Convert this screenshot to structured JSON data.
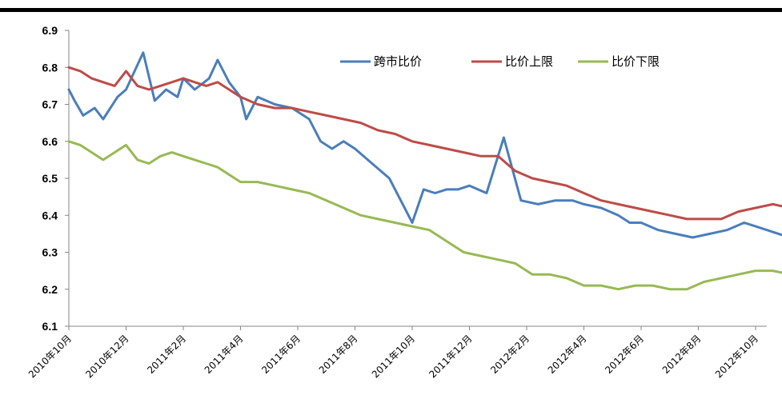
{
  "chart_data": {
    "type": "line",
    "title": "",
    "xlabel": "",
    "ylabel": "",
    "ylim": [
      6.1,
      6.9
    ],
    "yticks": [
      "6.1",
      "6.2",
      "6.3",
      "6.4",
      "6.5",
      "6.6",
      "6.7",
      "6.8",
      "6.9"
    ],
    "xticks": [
      "2010年10月",
      "2010年12月",
      "2011年2月",
      "2011年4月",
      "2011年6月",
      "2011年8月",
      "2011年10月",
      "2011年12月",
      "2012年2月",
      "2012年4月",
      "2012年6月",
      "2012年8月",
      "2012年10月"
    ],
    "grid": false,
    "legend_position": "top-right",
    "colors": [
      "#4a7ebb",
      "#be4b48",
      "#98b954"
    ],
    "series": [
      {
        "name": "跨市比价",
        "x": [
          0,
          0.1,
          0.25,
          0.45,
          0.6,
          0.85,
          1.0,
          1.3,
          1.5,
          1.7,
          1.9,
          2.0,
          2.2,
          2.45,
          2.6,
          2.8,
          3.0,
          3.1,
          3.3,
          3.6,
          3.9,
          4.2,
          4.4,
          4.6,
          4.8,
          5.0,
          5.3,
          5.6,
          5.8,
          6.0,
          6.2,
          6.4,
          6.6,
          6.8,
          7.0,
          7.3,
          7.6,
          7.9,
          8.2,
          8.5,
          8.8,
          9.0,
          9.3,
          9.6,
          9.8,
          10.0,
          10.3,
          10.6,
          10.9,
          11.2,
          11.5,
          11.8,
          12.0,
          12.2,
          12.4,
          12.6
        ],
        "values": [
          6.74,
          6.71,
          6.67,
          6.69,
          6.66,
          6.72,
          6.74,
          6.84,
          6.71,
          6.74,
          6.72,
          6.77,
          6.74,
          6.77,
          6.82,
          6.76,
          6.72,
          6.66,
          6.72,
          6.7,
          6.69,
          6.66,
          6.6,
          6.58,
          6.6,
          6.58,
          6.54,
          6.5,
          6.44,
          6.38,
          6.47,
          6.46,
          6.47,
          6.47,
          6.48,
          6.46,
          6.61,
          6.44,
          6.43,
          6.44,
          6.44,
          6.43,
          6.42,
          6.4,
          6.38,
          6.38,
          6.36,
          6.35,
          6.34,
          6.35,
          6.36,
          6.38,
          6.37,
          6.36,
          6.35,
          6.34
        ]
      },
      {
        "name": "比价上限",
        "x": [
          0,
          0.2,
          0.4,
          0.6,
          0.8,
          1.0,
          1.2,
          1.4,
          1.6,
          1.8,
          2.0,
          2.2,
          2.4,
          2.6,
          2.8,
          3.0,
          3.3,
          3.6,
          3.9,
          4.2,
          4.5,
          4.8,
          5.1,
          5.4,
          5.7,
          6.0,
          6.3,
          6.6,
          6.9,
          7.2,
          7.5,
          7.8,
          8.1,
          8.4,
          8.7,
          9.0,
          9.3,
          9.6,
          9.9,
          10.2,
          10.5,
          10.8,
          11.1,
          11.4,
          11.7,
          12.0,
          12.3,
          12.6
        ],
        "values": [
          6.8,
          6.79,
          6.77,
          6.76,
          6.75,
          6.79,
          6.75,
          6.74,
          6.75,
          6.76,
          6.77,
          6.76,
          6.75,
          6.76,
          6.74,
          6.72,
          6.7,
          6.69,
          6.69,
          6.68,
          6.67,
          6.66,
          6.65,
          6.63,
          6.62,
          6.6,
          6.59,
          6.58,
          6.57,
          6.56,
          6.56,
          6.52,
          6.5,
          6.49,
          6.48,
          6.46,
          6.44,
          6.43,
          6.42,
          6.41,
          6.4,
          6.39,
          6.39,
          6.39,
          6.41,
          6.42,
          6.43,
          6.42
        ]
      },
      {
        "name": "比价下限",
        "x": [
          0,
          0.2,
          0.4,
          0.6,
          0.8,
          1.0,
          1.2,
          1.4,
          1.6,
          1.8,
          2.0,
          2.2,
          2.4,
          2.6,
          2.8,
          3.0,
          3.3,
          3.6,
          3.9,
          4.2,
          4.5,
          4.8,
          5.1,
          5.4,
          5.7,
          6.0,
          6.3,
          6.6,
          6.9,
          7.2,
          7.5,
          7.8,
          8.1,
          8.4,
          8.7,
          9.0,
          9.3,
          9.6,
          9.9,
          10.2,
          10.5,
          10.8,
          11.1,
          11.4,
          11.7,
          12.0,
          12.3,
          12.6
        ],
        "values": [
          6.6,
          6.59,
          6.57,
          6.55,
          6.57,
          6.59,
          6.55,
          6.54,
          6.56,
          6.57,
          6.56,
          6.55,
          6.54,
          6.53,
          6.51,
          6.49,
          6.49,
          6.48,
          6.47,
          6.46,
          6.44,
          6.42,
          6.4,
          6.39,
          6.38,
          6.37,
          6.36,
          6.33,
          6.3,
          6.29,
          6.28,
          6.27,
          6.24,
          6.24,
          6.23,
          6.21,
          6.21,
          6.2,
          6.21,
          6.21,
          6.2,
          6.2,
          6.22,
          6.23,
          6.24,
          6.25,
          6.25,
          6.24
        ]
      }
    ]
  }
}
